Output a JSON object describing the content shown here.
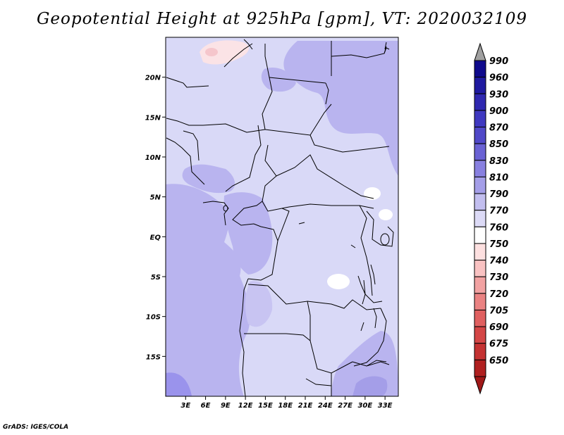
{
  "title": "Geopotential Height at 925hPa [gpm], VT: 2020032109",
  "footer": "GrADS: IGES/COLA",
  "map": {
    "variable": "Geopotential Height",
    "level": "925hPa",
    "units": "gpm",
    "valid_time": "2020032109",
    "lon_range": [
      0,
      35
    ],
    "lat_range": [
      -20,
      25
    ],
    "lon_ticks": [
      3,
      6,
      9,
      12,
      15,
      18,
      21,
      24,
      27,
      30,
      33
    ],
    "lon_tick_labels": [
      "3E",
      "6E",
      "9E",
      "12E",
      "15E",
      "18E",
      "21E",
      "24E",
      "27E",
      "30E",
      "33E"
    ],
    "lat_ticks": [
      20,
      15,
      10,
      5,
      0,
      -5,
      -10,
      -15
    ],
    "lat_tick_labels": [
      "20N",
      "15N",
      "10N",
      "5N",
      "EQ",
      "5S",
      "10S",
      "15S"
    ]
  },
  "colorbar": {
    "labels": [
      "990",
      "960",
      "930",
      "900",
      "870",
      "850",
      "830",
      "810",
      "790",
      "770",
      "760",
      "750",
      "740",
      "730",
      "720",
      "705",
      "690",
      "675",
      "650"
    ],
    "colors": [
      "#0f0a8c",
      "#1f1aa0",
      "#2f28b0",
      "#3f38c0",
      "#5048c8",
      "#6a62d4",
      "#8880e0",
      "#a49ee8",
      "#c2beef",
      "#dcdaf6",
      "#ffffff",
      "#fde0e0",
      "#f9c2c2",
      "#f2a2a2",
      "#ea8282",
      "#e06060",
      "#d44646",
      "#c43232",
      "#b02020"
    ],
    "top_arrow_color": "#a0a0a0",
    "bottom_arrow_color": "#a01818"
  },
  "fill_colors": {
    "background": "#d9d9f7",
    "light_pink": "#fbe3e6",
    "medium_blue": "#b9b4ef",
    "dark_blue": "#9a93ec",
    "white": "#ffffff"
  }
}
